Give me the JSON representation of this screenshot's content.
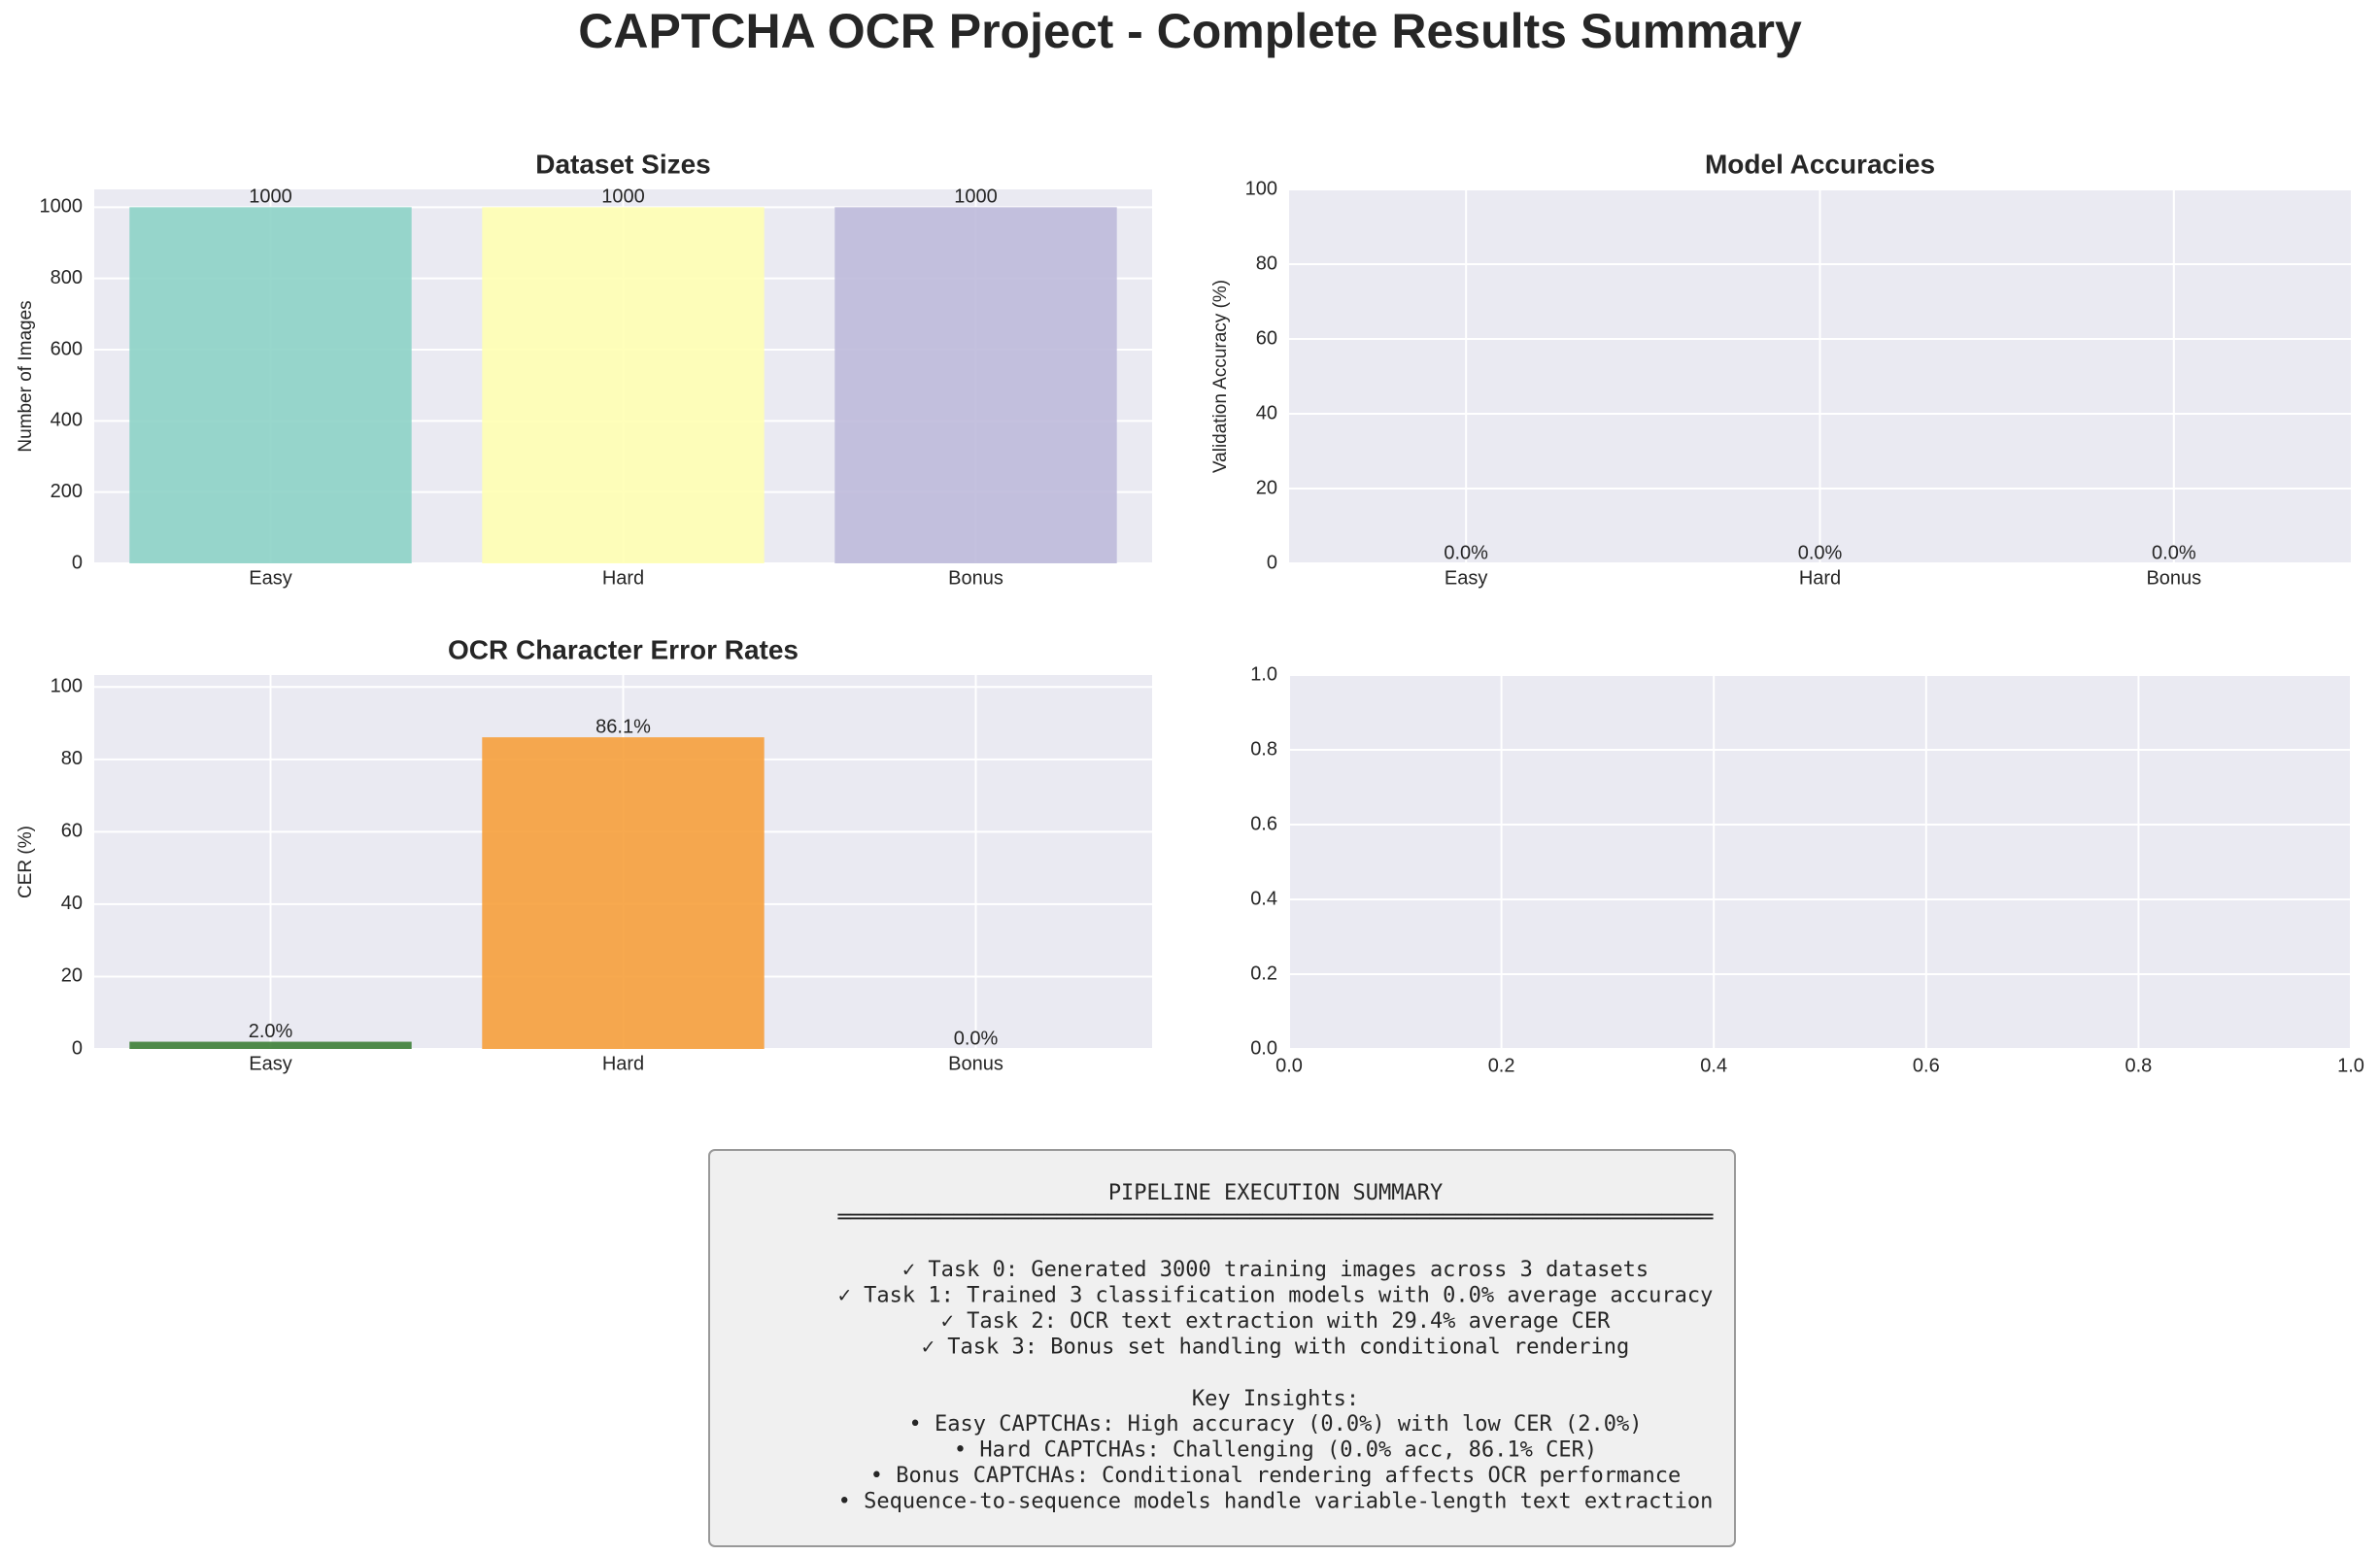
{
  "title": "CAPTCHA OCR Project - Complete Results Summary",
  "chart_data": [
    {
      "type": "bar",
      "title": "Dataset Sizes",
      "y_label": "Number of Images",
      "categories": [
        "Easy",
        "Hard",
        "Bonus"
      ],
      "values": [
        1000,
        1000,
        1000
      ],
      "colors": [
        "#8dd3c7",
        "#ffffb3",
        "#bebada"
      ],
      "ylim": [
        0,
        1050
      ],
      "yticks": [
        0,
        200,
        400,
        600,
        800,
        1000
      ],
      "grid": true
    },
    {
      "type": "bar",
      "title": "Model Accuracies",
      "y_label": "Validation Accuracy (%)",
      "categories": [
        "Easy",
        "Hard",
        "Bonus"
      ],
      "values": [
        0,
        0,
        0
      ],
      "value_labels": [
        "0.0%",
        "0.0%",
        "0.0%"
      ],
      "colors": [
        "#3d7f36",
        "#f6a03c",
        "#e05050"
      ],
      "ylim": [
        0,
        100
      ],
      "yticks": [
        0,
        20,
        40,
        60,
        80,
        100
      ],
      "grid": true
    },
    {
      "type": "bar",
      "title": "OCR Character Error Rates",
      "y_label": "CER (%)",
      "categories": [
        "Easy",
        "Hard",
        "Bonus"
      ],
      "values": [
        2.0,
        86.1,
        0.0
      ],
      "value_labels": [
        "2.0%",
        "86.1%",
        "0.0%"
      ],
      "colors": [
        "#3d7f36",
        "#f6a03c",
        "#e05050"
      ],
      "ylim": [
        0,
        103.3
      ],
      "yticks": [
        0,
        20,
        40,
        60,
        80,
        100
      ],
      "grid": true
    },
    {
      "type": "empty",
      "xlim": [
        0,
        1
      ],
      "ylim": [
        0,
        1
      ],
      "xticks": [
        {
          "value": 0,
          "label": "0.0"
        },
        {
          "value": 0.2,
          "label": "0.2"
        },
        {
          "value": 0.4,
          "label": "0.4"
        },
        {
          "value": 0.6,
          "label": "0.6"
        },
        {
          "value": 0.8,
          "label": "0.8"
        },
        {
          "value": 1,
          "label": "1.0"
        }
      ],
      "yticks": [
        {
          "value": 0,
          "label": "0.0"
        },
        {
          "value": 0.2,
          "label": "0.2"
        },
        {
          "value": 0.4,
          "label": "0.4"
        },
        {
          "value": 0.6,
          "label": "0.6"
        },
        {
          "value": 0.8,
          "label": "0.8"
        },
        {
          "value": 1,
          "label": "1.0"
        }
      ],
      "grid": true
    }
  ],
  "summary": {
    "heading": "PIPELINE EXECUTION SUMMARY",
    "rule": "════════════════════════════════════════════════════════════════════",
    "tasks": [
      "✓ Task 0: Generated 3000 training images across 3 datasets",
      "✓ Task 1: Trained 3 classification models with 0.0% average accuracy",
      "✓ Task 2: OCR text extraction with 29.4% average CER",
      "✓ Task 3: Bonus set handling with conditional rendering"
    ],
    "insights_heading": "Key Insights:",
    "insights": [
      "• Easy CAPTCHAs: High accuracy (0.0%) with low CER (2.0%)",
      "• Hard CAPTCHAs: Challenging (0.0% acc, 86.1% CER)",
      "• Bonus CAPTCHAs: Conditional rendering affects OCR performance",
      "• Sequence-to-sequence models handle variable-length text extraction"
    ]
  }
}
